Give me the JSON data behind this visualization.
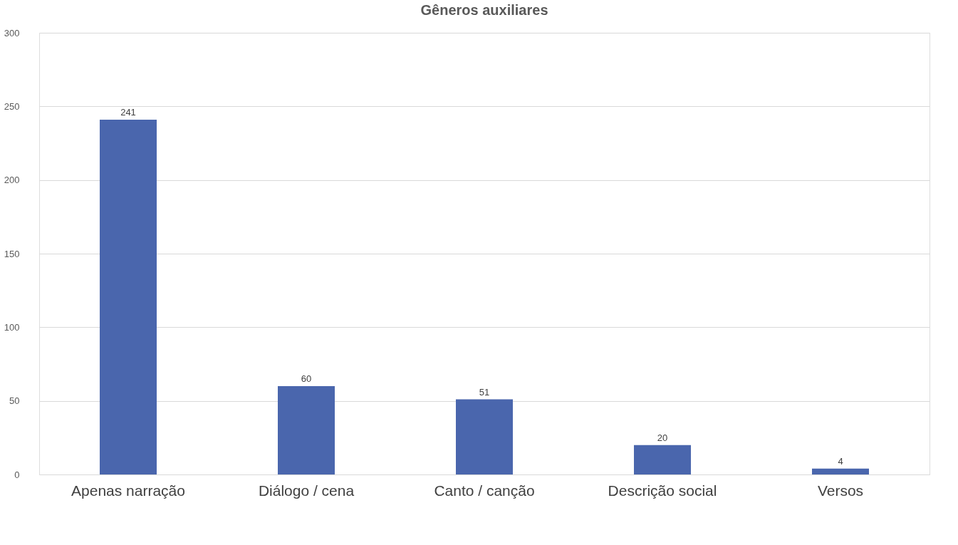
{
  "chart_data": {
    "type": "bar",
    "title": "Gêneros auxiliares",
    "categories": [
      "Apenas narração",
      "Diálogo / cena",
      "Canto / canção",
      "Descrição social",
      "Versos"
    ],
    "values": [
      241,
      60,
      51,
      20,
      4
    ],
    "color": "#4a66ad",
    "ylim": [
      0,
      300
    ],
    "yticks": [
      0,
      50,
      100,
      150,
      200,
      250,
      300
    ],
    "grid": "y",
    "data_labels": true
  }
}
